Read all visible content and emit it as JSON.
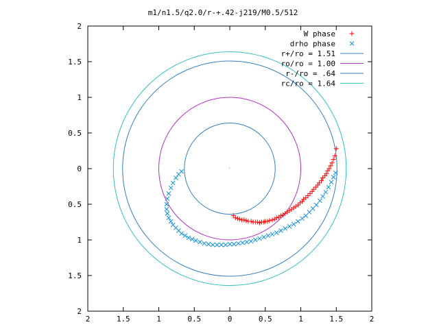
{
  "chart_data": {
    "type": "scatter",
    "title": "m1/n1.5/q2.0/r-+.42-j219/M0.5/512",
    "xlabel": "",
    "ylabel": "",
    "xlim": [
      -2,
      2
    ],
    "ylim": [
      -2,
      2
    ],
    "grid": false,
    "legend_position": "top-right",
    "x_tick_labels": [
      "2",
      "1.5",
      "1",
      "0.5",
      "0",
      "0.5",
      "1",
      "1.5",
      "2"
    ],
    "y_tick_labels": [
      "2",
      "1.5",
      "1",
      "0.5",
      "0",
      "0.5",
      "1",
      "1.5",
      "2"
    ],
    "x_ticks": [
      -2,
      -1.5,
      -1,
      -0.5,
      0,
      0.5,
      1,
      1.5,
      2
    ],
    "y_ticks": [
      2,
      1.5,
      1,
      0.5,
      0,
      -0.5,
      -1,
      -1.5,
      -2
    ],
    "circles": [
      {
        "name": "r+/ro = 1.51",
        "radius": 1.51,
        "color": "#2f7fc0"
      },
      {
        "name": "ro/ro = 1.00",
        "radius": 1.0,
        "color": "#b030c0"
      },
      {
        "name": "r-/ro = .64",
        "radius": 0.64,
        "color": "#2f7fc0"
      },
      {
        "name": "rc/ro = 1.64",
        "radius": 1.64,
        "color": "#30c0c0"
      }
    ],
    "series": [
      {
        "name": "W phase",
        "marker": "plus",
        "color": "#ff0000",
        "x": [
          0.05,
          0.08,
          0.11,
          0.14,
          0.17,
          0.2,
          0.23,
          0.26,
          0.3,
          0.33,
          0.36,
          0.39,
          0.42,
          0.45,
          0.48,
          0.5,
          0.53,
          0.56,
          0.6,
          0.63,
          0.66,
          0.69,
          0.72,
          0.75,
          0.78,
          0.81,
          0.84,
          0.87,
          0.9,
          0.93,
          0.96,
          0.99,
          1.02,
          1.04,
          1.07,
          1.1,
          1.13,
          1.16,
          1.18,
          1.21,
          1.24,
          1.26,
          1.29,
          1.31,
          1.34,
          1.36,
          1.38,
          1.4,
          1.42,
          1.44,
          1.46,
          1.48,
          1.5
        ],
        "y": [
          -0.66,
          -0.69,
          -0.7,
          -0.71,
          -0.72,
          -0.72,
          -0.73,
          -0.74,
          -0.74,
          -0.75,
          -0.75,
          -0.75,
          -0.76,
          -0.75,
          -0.75,
          -0.74,
          -0.74,
          -0.73,
          -0.72,
          -0.71,
          -0.69,
          -0.68,
          -0.66,
          -0.65,
          -0.63,
          -0.61,
          -0.59,
          -0.57,
          -0.55,
          -0.53,
          -0.51,
          -0.48,
          -0.46,
          -0.43,
          -0.41,
          -0.38,
          -0.35,
          -0.32,
          -0.29,
          -0.26,
          -0.23,
          -0.2,
          -0.17,
          -0.13,
          -0.1,
          -0.07,
          -0.03,
          0.0,
          0.04,
          0.08,
          0.13,
          0.18,
          0.28
        ]
      },
      {
        "name": "drho phase",
        "marker": "cross",
        "color": "#0b8fe0",
        "x": [
          -0.68,
          -0.72,
          -0.76,
          -0.8,
          -0.83,
          -0.86,
          -0.88,
          -0.89,
          -0.89,
          -0.88,
          -0.86,
          -0.83,
          -0.8,
          -0.76,
          -0.72,
          -0.68,
          -0.63,
          -0.58,
          -0.53,
          -0.48,
          -0.42,
          -0.36,
          -0.3,
          -0.24,
          -0.18,
          -0.12,
          -0.06,
          0.0,
          0.06,
          0.12,
          0.18,
          0.24,
          0.3,
          0.36,
          0.42,
          0.48,
          0.54,
          0.6,
          0.66,
          0.72,
          0.78,
          0.84,
          0.9,
          0.96,
          1.02,
          1.07,
          1.12,
          1.17,
          1.22,
          1.27,
          1.31,
          1.35,
          1.39,
          1.43,
          1.46,
          1.49
        ],
        "y": [
          -0.04,
          -0.08,
          -0.13,
          -0.2,
          -0.27,
          -0.35,
          -0.42,
          -0.5,
          -0.57,
          -0.63,
          -0.69,
          -0.74,
          -0.79,
          -0.83,
          -0.87,
          -0.91,
          -0.94,
          -0.97,
          -0.99,
          -1.01,
          -1.03,
          -1.05,
          -1.06,
          -1.07,
          -1.07,
          -1.07,
          -1.07,
          -1.06,
          -1.06,
          -1.05,
          -1.04,
          -1.03,
          -1.02,
          -1.0,
          -0.98,
          -0.96,
          -0.94,
          -0.92,
          -0.9,
          -0.87,
          -0.84,
          -0.81,
          -0.78,
          -0.74,
          -0.7,
          -0.66,
          -0.61,
          -0.56,
          -0.51,
          -0.45,
          -0.39,
          -0.33,
          -0.26,
          -0.19,
          -0.12,
          -0.06
        ]
      }
    ]
  }
}
